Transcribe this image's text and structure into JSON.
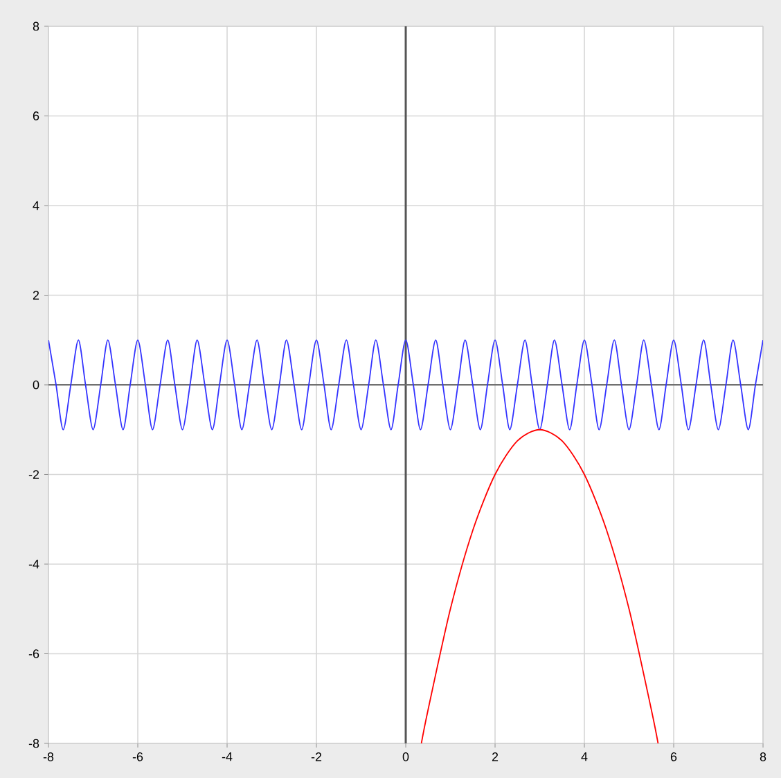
{
  "chart_data": {
    "type": "line",
    "series": [
      {
        "color": "#3333ff",
        "x": [
          -8,
          -7.83,
          -7.67,
          -7.5,
          -7.33,
          -7.17,
          -7,
          -6.83,
          -6.67,
          -6.5,
          -6.33,
          -6.17,
          -6,
          -5.83,
          -5.67,
          -5.5,
          -5.33,
          -5.17,
          -5,
          -4.83,
          -4.67,
          -4.5,
          -4.33,
          -4.17,
          -4,
          -3.83,
          -3.67,
          -3.5,
          -3.33,
          -3.17,
          -3,
          -2.83,
          -2.67,
          -2.5,
          -2.33,
          -2.17,
          -2,
          -1.83,
          -1.67,
          -1.5,
          -1.33,
          -1.17,
          -1,
          -0.83,
          -0.67,
          -0.5,
          -0.33,
          -0.17,
          0,
          0.17,
          0.33,
          0.5,
          0.67,
          0.83,
          1,
          1.17,
          1.33,
          1.5,
          1.67,
          1.83,
          2,
          2.17,
          2.33,
          2.5,
          2.67,
          2.83,
          3,
          3.17,
          3.33,
          3.5,
          3.67,
          3.83,
          4,
          4.17,
          4.33,
          4.5,
          4.67,
          4.83,
          5,
          5.17,
          5.33,
          5.5,
          5.67,
          5.83,
          6,
          6.17,
          6.33,
          6.5,
          6.67,
          6.83,
          7,
          7.17,
          7.33,
          7.5,
          7.67,
          7.83,
          8
        ],
        "values": [
          1,
          0,
          -1,
          0,
          1,
          0,
          -1,
          0,
          1,
          0,
          -1,
          0,
          1,
          0,
          -1,
          0,
          1,
          0,
          -1,
          0,
          1,
          0,
          -1,
          0,
          1,
          0,
          -1,
          0,
          1,
          0,
          -1,
          0,
          1,
          0,
          -1,
          0,
          1,
          0,
          -1,
          0,
          1,
          0,
          -1,
          0,
          1,
          0,
          -1,
          0,
          1,
          0,
          -1,
          0,
          1,
          0,
          -1,
          0,
          1,
          0,
          -1,
          0,
          1,
          0,
          -1,
          0,
          1,
          0,
          -1,
          0,
          1,
          0,
          -1,
          0,
          1,
          0,
          -1,
          0,
          1,
          0,
          -1,
          0,
          1,
          0,
          -1,
          0,
          1,
          0,
          -1,
          0,
          1,
          0,
          -1,
          0,
          1,
          0,
          -1,
          0,
          1
        ]
      },
      {
        "color": "#ff0000",
        "x": [
          0.35,
          0.5,
          1,
          1.5,
          2,
          2.5,
          3,
          3.5,
          4,
          4.5,
          5,
          5.5,
          5.65
        ],
        "values": [
          -8,
          -7.25,
          -5,
          -3.25,
          -2,
          -1.25,
          -1,
          -1.25,
          -2,
          -3.25,
          -5,
          -7.25,
          -8
        ]
      }
    ],
    "xlim": [
      -8,
      8
    ],
    "ylim": [
      -8,
      8
    ],
    "xticks": [
      -8,
      -6,
      -4,
      -2,
      0,
      2,
      4,
      6,
      8
    ],
    "yticks": [
      -8,
      -6,
      -4,
      -2,
      0,
      2,
      4,
      6,
      8
    ],
    "grid": true,
    "ref_lines": [
      {
        "axis": "x",
        "value": 0,
        "color": "#555555"
      },
      {
        "axis": "y",
        "value": 0,
        "color": "#707070"
      }
    ]
  }
}
